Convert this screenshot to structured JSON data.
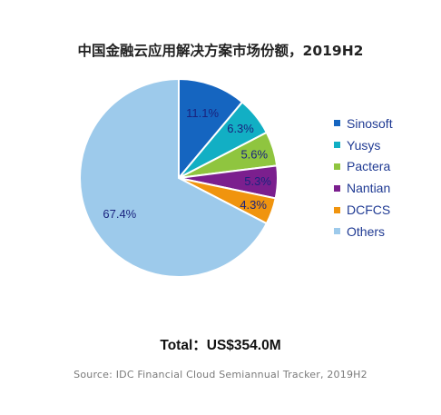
{
  "chart_data": {
    "type": "pie",
    "title": "中国金融云应用解决方案市场份额，2019H2",
    "categories": [
      "Sinosoft",
      "Yusys",
      "Pactera",
      "Nantian",
      "DCFCS",
      "Others"
    ],
    "values": [
      11.1,
      6.3,
      5.6,
      5.3,
      4.3,
      67.4
    ],
    "labels": [
      "11.1%",
      "6.3%",
      "5.6%",
      "5.3%",
      "4.3%",
      "67.4%"
    ],
    "colors": [
      "#1565c0",
      "#12afc4",
      "#8fc53f",
      "#7b1f8e",
      "#f0940e",
      "#9dcaeb"
    ],
    "legend_position": "right",
    "start_angle_deg": 0,
    "direction": "clockwise"
  },
  "total": "Total：US$354.0M",
  "source": "Source: IDC Financial Cloud Semiannual Tracker, 2019H2"
}
